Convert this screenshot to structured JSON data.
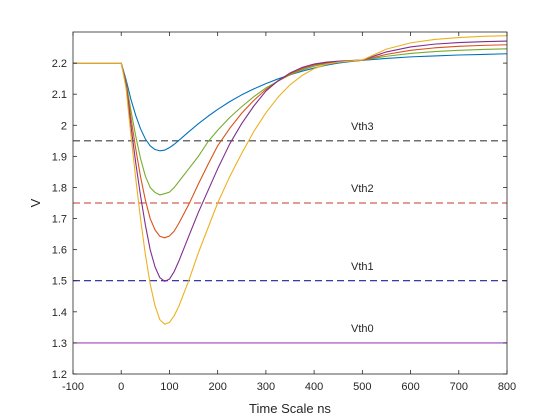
{
  "chart_data": {
    "type": "line",
    "xlabel": "Time Scale ns",
    "ylabel": "V",
    "xlim": [
      -100,
      800
    ],
    "ylim": [
      1.2,
      2.3
    ],
    "xticks": [
      -100,
      0,
      100,
      200,
      300,
      400,
      500,
      600,
      700,
      800
    ],
    "yticks": [
      1.2,
      1.3,
      1.4,
      1.5,
      1.6,
      1.7,
      1.8,
      1.9,
      2.0,
      2.1,
      2.2
    ],
    "ytick_labels": [
      "1.2",
      "1.3",
      "1.4",
      "1.5",
      "1.6",
      "1.7",
      "1.8",
      "1.9",
      "2",
      "2.1",
      "2.2"
    ],
    "grid": false,
    "curve_x": [
      -100,
      0,
      10,
      20,
      30,
      40,
      50,
      60,
      70,
      80,
      90,
      100,
      110,
      120,
      140,
      160,
      180,
      200,
      225,
      250,
      275,
      300,
      325,
      350,
      375,
      400,
      425,
      450,
      475,
      500,
      550,
      600,
      650,
      700,
      750,
      800
    ],
    "series": [
      {
        "color": "#0072BD",
        "values": [
          2.2,
          2.2,
          2.147,
          2.084,
          2.032,
          1.989,
          1.956,
          1.934,
          1.922,
          1.918,
          1.92,
          1.928,
          1.939,
          1.952,
          1.979,
          2.005,
          2.029,
          2.051,
          2.076,
          2.098,
          2.117,
          2.134,
          2.149,
          2.162,
          2.174,
          2.184,
          2.193,
          2.2,
          2.205,
          2.209,
          2.215,
          2.22,
          2.223,
          2.226,
          2.228,
          2.23
        ]
      },
      {
        "color": "#77AC30",
        "values": [
          2.2,
          2.2,
          2.14,
          2.049,
          1.966,
          1.893,
          1.837,
          1.8,
          1.784,
          1.776,
          1.78,
          1.785,
          1.8,
          1.82,
          1.86,
          1.9,
          1.947,
          1.984,
          2.025,
          2.06,
          2.092,
          2.12,
          2.142,
          2.162,
          2.178,
          2.19,
          2.198,
          2.203,
          2.206,
          2.209,
          2.222,
          2.231,
          2.237,
          2.241,
          2.244,
          2.246
        ]
      },
      {
        "color": "#D95319",
        "values": [
          2.2,
          2.2,
          2.135,
          2.025,
          1.925,
          1.835,
          1.76,
          1.7,
          1.664,
          1.643,
          1.638,
          1.644,
          1.66,
          1.686,
          1.745,
          1.811,
          1.874,
          1.934,
          1.99,
          2.039,
          2.08,
          2.115,
          2.142,
          2.165,
          2.182,
          2.194,
          2.201,
          2.205,
          2.207,
          2.209,
          2.228,
          2.241,
          2.249,
          2.254,
          2.257,
          2.259
        ]
      },
      {
        "color": "#7E2F8E",
        "values": [
          2.2,
          2.2,
          2.13,
          2.0,
          1.88,
          1.774,
          1.68,
          1.6,
          1.545,
          1.51,
          1.498,
          1.505,
          1.53,
          1.565,
          1.643,
          1.72,
          1.79,
          1.86,
          1.94,
          2.006,
          2.062,
          2.11,
          2.143,
          2.168,
          2.186,
          2.197,
          2.203,
          2.206,
          2.208,
          2.21,
          2.236,
          2.252,
          2.261,
          2.266,
          2.269,
          2.271
        ]
      },
      {
        "color": "#EDB120",
        "values": [
          2.2,
          2.2,
          2.12,
          1.97,
          1.83,
          1.7,
          1.585,
          1.49,
          1.42,
          1.375,
          1.36,
          1.366,
          1.388,
          1.42,
          1.5,
          1.59,
          1.67,
          1.75,
          1.835,
          1.91,
          1.98,
          2.04,
          2.09,
          2.13,
          2.16,
          2.182,
          2.196,
          2.203,
          2.207,
          2.21,
          2.245,
          2.265,
          2.276,
          2.282,
          2.286,
          2.288
        ]
      }
    ],
    "thresholds": [
      {
        "label": "Vth3",
        "y": 1.95,
        "color": "#404040",
        "dash": "dashed",
        "label_x": 500,
        "label_y": 1.985
      },
      {
        "label": "Vth2",
        "y": 1.75,
        "color": "#C0392B",
        "dash": "dashed",
        "label_x": 500,
        "label_y": 1.785
      },
      {
        "label": "Vth1",
        "y": 1.5,
        "color": "#1F1F9E",
        "dash": "dashed",
        "label_x": 500,
        "label_y": 1.535
      },
      {
        "label": "Vth0",
        "y": 1.3,
        "color": "#A040C0",
        "dash": "solid",
        "label_x": 500,
        "label_y": 1.335
      }
    ]
  }
}
